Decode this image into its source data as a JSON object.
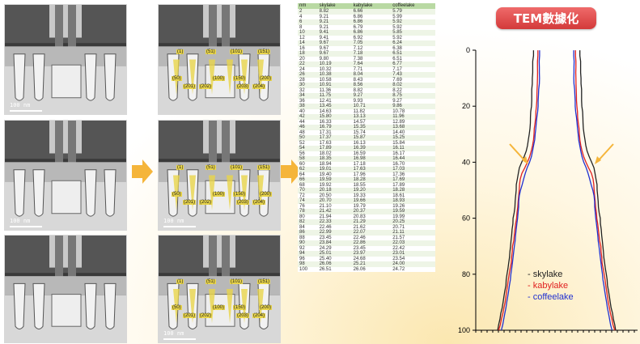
{
  "tem_panels": [
    {
      "scale_label": "100 nm",
      "annotated": false
    },
    {
      "scale_label": "",
      "annotated": true
    },
    {
      "scale_label": "100 nm",
      "annotated": false
    },
    {
      "scale_label": "100 nm",
      "annotated": true
    },
    {
      "scale_label": "",
      "annotated": false
    },
    {
      "scale_label": "100 nm",
      "annotated": true
    }
  ],
  "annotation_labels": [
    "(1)",
    "(51)",
    "(101)",
    "(151)",
    "(50)",
    "(100)",
    "(150)",
    "(200)",
    "(201)",
    "(202)",
    "(203)",
    "(204)"
  ],
  "table": {
    "headers": [
      "nm",
      "skylake",
      "kabylake",
      "coffeelake"
    ],
    "rows": [
      [
        "2",
        "8.82",
        "6.66",
        "5.79"
      ],
      [
        "4",
        "9.21",
        "6.86",
        "5.99"
      ],
      [
        "6",
        "9.21",
        "6.86",
        "5.92"
      ],
      [
        "8",
        "9.21",
        "6.79",
        "5.92"
      ],
      [
        "10",
        "9.41",
        "6.86",
        "5.85"
      ],
      [
        "12",
        "9.41",
        "6.92",
        "5.92"
      ],
      [
        "14",
        "9.67",
        "7.05",
        "6.24"
      ],
      [
        "16",
        "9.67",
        "7.12",
        "6.38"
      ],
      [
        "18",
        "9.67",
        "7.18",
        "6.51"
      ],
      [
        "20",
        "9.80",
        "7.38",
        "6.51"
      ],
      [
        "22",
        "10.19",
        "7.64",
        "6.77"
      ],
      [
        "24",
        "10.32",
        "7.71",
        "7.17"
      ],
      [
        "26",
        "10.38",
        "8.04",
        "7.43"
      ],
      [
        "28",
        "10.58",
        "8.43",
        "7.69"
      ],
      [
        "30",
        "10.91",
        "8.56",
        "8.02"
      ],
      [
        "32",
        "11.36",
        "8.82",
        "8.22"
      ],
      [
        "34",
        "11.75",
        "9.27",
        "8.75"
      ],
      [
        "36",
        "12.41",
        "9.93",
        "9.27"
      ],
      [
        "38",
        "13.45",
        "10.71",
        "9.86"
      ],
      [
        "40",
        "14.63",
        "11.82",
        "10.78"
      ],
      [
        "42",
        "15.80",
        "13.13",
        "11.96"
      ],
      [
        "44",
        "16.33",
        "14.57",
        "12.89"
      ],
      [
        "46",
        "16.79",
        "15.35",
        "13.68"
      ],
      [
        "48",
        "17.31",
        "15.74",
        "14.40"
      ],
      [
        "50",
        "17.37",
        "15.87",
        "15.25"
      ],
      [
        "52",
        "17.63",
        "16.13",
        "15.84"
      ],
      [
        "54",
        "17.89",
        "16.39",
        "16.11"
      ],
      [
        "56",
        "18.02",
        "16.59",
        "16.17"
      ],
      [
        "58",
        "18.35",
        "16.98",
        "16.44"
      ],
      [
        "60",
        "18.94",
        "17.18",
        "16.70"
      ],
      [
        "62",
        "19.01",
        "17.63",
        "17.03"
      ],
      [
        "64",
        "19.40",
        "17.96",
        "17.36"
      ],
      [
        "66",
        "19.59",
        "18.28",
        "17.69"
      ],
      [
        "68",
        "19.92",
        "18.55",
        "17.89"
      ],
      [
        "70",
        "20.18",
        "19.20",
        "18.28"
      ],
      [
        "72",
        "20.50",
        "19.33",
        "18.61"
      ],
      [
        "74",
        "20.70",
        "19.66",
        "18.93"
      ],
      [
        "76",
        "21.10",
        "19.79",
        "19.26"
      ],
      [
        "78",
        "21.42",
        "20.37",
        "19.59"
      ],
      [
        "80",
        "21.94",
        "20.83",
        "19.99"
      ],
      [
        "82",
        "22.33",
        "21.29",
        "20.25"
      ],
      [
        "84",
        "22.46",
        "21.62",
        "20.71"
      ],
      [
        "86",
        "22.99",
        "22.07",
        "21.11"
      ],
      [
        "88",
        "23.45",
        "22.46",
        "21.57"
      ],
      [
        "90",
        "23.84",
        "22.86",
        "22.03"
      ],
      [
        "92",
        "24.29",
        "23.45",
        "22.42"
      ],
      [
        "94",
        "25.01",
        "23.97",
        "23.01"
      ],
      [
        "96",
        "25.40",
        "24.68",
        "23.54"
      ],
      [
        "98",
        "26.06",
        "25.21",
        "24.00"
      ],
      [
        "100",
        "26.51",
        "26.06",
        "24.72"
      ]
    ]
  },
  "badge": "TEM數據化",
  "chart_data": {
    "type": "line",
    "title": "",
    "xlabel": "",
    "ylabel": "",
    "ylim": [
      0,
      100
    ],
    "yticks": [
      "0",
      "20",
      "40",
      "60",
      "80",
      "100"
    ],
    "series": [
      {
        "name": "skylake",
        "color": "#222222"
      },
      {
        "name": "kabylake",
        "color": "#e02020"
      },
      {
        "name": "coffeelake",
        "color": "#2030d0"
      }
    ],
    "legend_prefix": "-"
  },
  "colors": {
    "arrow": "#f5b53a",
    "badge": "#e04848",
    "table_header": "#b9d9a3"
  }
}
